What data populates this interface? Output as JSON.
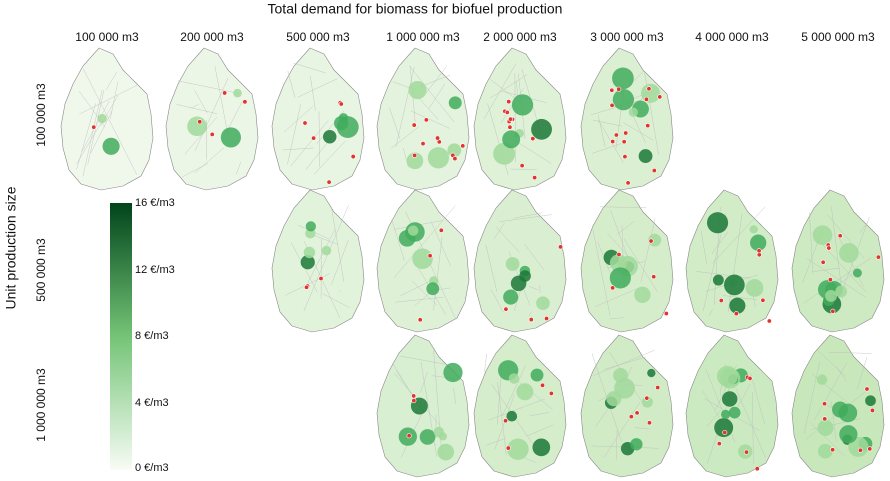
{
  "title": "Total demand for biomass for biofuel production",
  "columns": [
    "100 000 m3",
    "200 000 m3",
    "500 000 m3",
    "1 000 000 m3",
    "2 000 000 m3",
    "3 000 000 m3",
    "4 000 000 m3",
    "5 000 000 m3"
  ],
  "row_axis_label": "Unit production size",
  "rows": [
    "100 000 m3",
    "500 000 m3",
    "1 000 000 m3"
  ],
  "colorbar": {
    "labels": [
      "16 €/m3",
      "12 €/m3",
      "8 €/m3",
      "4 €/m3",
      "0 €/m3"
    ]
  }
}
